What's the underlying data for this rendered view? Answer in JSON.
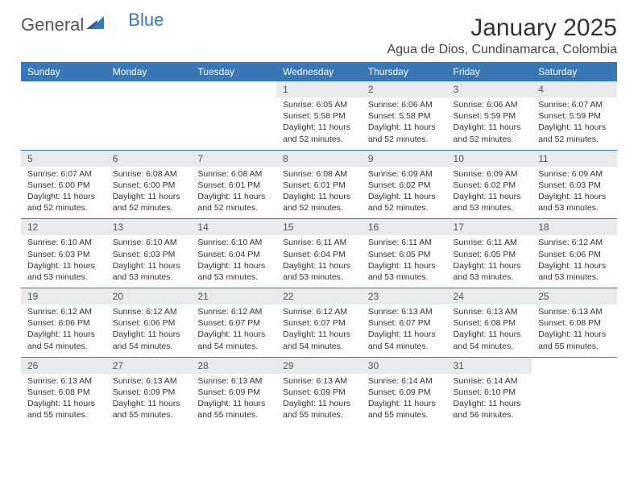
{
  "branding": {
    "text1": "General",
    "text2": "Blue"
  },
  "header": {
    "month_title": "January 2025",
    "location": "Agua de Dios, Cundinamarca, Colombia"
  },
  "colors": {
    "accent": "#3a78b5",
    "header_text": "#ffffff",
    "daynum_bg": "#e9eaeb",
    "body_text": "#333333"
  },
  "day_headers": [
    "Sunday",
    "Monday",
    "Tuesday",
    "Wednesday",
    "Thursday",
    "Friday",
    "Saturday"
  ],
  "weeks": [
    [
      {
        "blank": true
      },
      {
        "blank": true
      },
      {
        "blank": true
      },
      {
        "daynum": "1",
        "sunrise": "Sunrise: 6:05 AM",
        "sunset": "Sunset: 5:58 PM",
        "daylight": "Daylight: 11 hours and 52 minutes."
      },
      {
        "daynum": "2",
        "sunrise": "Sunrise: 6:06 AM",
        "sunset": "Sunset: 5:58 PM",
        "daylight": "Daylight: 11 hours and 52 minutes."
      },
      {
        "daynum": "3",
        "sunrise": "Sunrise: 6:06 AM",
        "sunset": "Sunset: 5:59 PM",
        "daylight": "Daylight: 11 hours and 52 minutes."
      },
      {
        "daynum": "4",
        "sunrise": "Sunrise: 6:07 AM",
        "sunset": "Sunset: 5:59 PM",
        "daylight": "Daylight: 11 hours and 52 minutes."
      }
    ],
    [
      {
        "daynum": "5",
        "sunrise": "Sunrise: 6:07 AM",
        "sunset": "Sunset: 6:00 PM",
        "daylight": "Daylight: 11 hours and 52 minutes."
      },
      {
        "daynum": "6",
        "sunrise": "Sunrise: 6:08 AM",
        "sunset": "Sunset: 6:00 PM",
        "daylight": "Daylight: 11 hours and 52 minutes."
      },
      {
        "daynum": "7",
        "sunrise": "Sunrise: 6:08 AM",
        "sunset": "Sunset: 6:01 PM",
        "daylight": "Daylight: 11 hours and 52 minutes."
      },
      {
        "daynum": "8",
        "sunrise": "Sunrise: 6:08 AM",
        "sunset": "Sunset: 6:01 PM",
        "daylight": "Daylight: 11 hours and 52 minutes."
      },
      {
        "daynum": "9",
        "sunrise": "Sunrise: 6:09 AM",
        "sunset": "Sunset: 6:02 PM",
        "daylight": "Daylight: 11 hours and 52 minutes."
      },
      {
        "daynum": "10",
        "sunrise": "Sunrise: 6:09 AM",
        "sunset": "Sunset: 6:02 PM",
        "daylight": "Daylight: 11 hours and 53 minutes."
      },
      {
        "daynum": "11",
        "sunrise": "Sunrise: 6:09 AM",
        "sunset": "Sunset: 6:03 PM",
        "daylight": "Daylight: 11 hours and 53 minutes."
      }
    ],
    [
      {
        "daynum": "12",
        "sunrise": "Sunrise: 6:10 AM",
        "sunset": "Sunset: 6:03 PM",
        "daylight": "Daylight: 11 hours and 53 minutes."
      },
      {
        "daynum": "13",
        "sunrise": "Sunrise: 6:10 AM",
        "sunset": "Sunset: 6:03 PM",
        "daylight": "Daylight: 11 hours and 53 minutes."
      },
      {
        "daynum": "14",
        "sunrise": "Sunrise: 6:10 AM",
        "sunset": "Sunset: 6:04 PM",
        "daylight": "Daylight: 11 hours and 53 minutes."
      },
      {
        "daynum": "15",
        "sunrise": "Sunrise: 6:11 AM",
        "sunset": "Sunset: 6:04 PM",
        "daylight": "Daylight: 11 hours and 53 minutes."
      },
      {
        "daynum": "16",
        "sunrise": "Sunrise: 6:11 AM",
        "sunset": "Sunset: 6:05 PM",
        "daylight": "Daylight: 11 hours and 53 minutes."
      },
      {
        "daynum": "17",
        "sunrise": "Sunrise: 6:11 AM",
        "sunset": "Sunset: 6:05 PM",
        "daylight": "Daylight: 11 hours and 53 minutes."
      },
      {
        "daynum": "18",
        "sunrise": "Sunrise: 6:12 AM",
        "sunset": "Sunset: 6:06 PM",
        "daylight": "Daylight: 11 hours and 53 minutes."
      }
    ],
    [
      {
        "daynum": "19",
        "sunrise": "Sunrise: 6:12 AM",
        "sunset": "Sunset: 6:06 PM",
        "daylight": "Daylight: 11 hours and 54 minutes."
      },
      {
        "daynum": "20",
        "sunrise": "Sunrise: 6:12 AM",
        "sunset": "Sunset: 6:06 PM",
        "daylight": "Daylight: 11 hours and 54 minutes."
      },
      {
        "daynum": "21",
        "sunrise": "Sunrise: 6:12 AM",
        "sunset": "Sunset: 6:07 PM",
        "daylight": "Daylight: 11 hours and 54 minutes."
      },
      {
        "daynum": "22",
        "sunrise": "Sunrise: 6:12 AM",
        "sunset": "Sunset: 6:07 PM",
        "daylight": "Daylight: 11 hours and 54 minutes."
      },
      {
        "daynum": "23",
        "sunrise": "Sunrise: 6:13 AM",
        "sunset": "Sunset: 6:07 PM",
        "daylight": "Daylight: 11 hours and 54 minutes."
      },
      {
        "daynum": "24",
        "sunrise": "Sunrise: 6:13 AM",
        "sunset": "Sunset: 6:08 PM",
        "daylight": "Daylight: 11 hours and 54 minutes."
      },
      {
        "daynum": "25",
        "sunrise": "Sunrise: 6:13 AM",
        "sunset": "Sunset: 6:08 PM",
        "daylight": "Daylight: 11 hours and 55 minutes."
      }
    ],
    [
      {
        "daynum": "26",
        "sunrise": "Sunrise: 6:13 AM",
        "sunset": "Sunset: 6:08 PM",
        "daylight": "Daylight: 11 hours and 55 minutes."
      },
      {
        "daynum": "27",
        "sunrise": "Sunrise: 6:13 AM",
        "sunset": "Sunset: 6:09 PM",
        "daylight": "Daylight: 11 hours and 55 minutes."
      },
      {
        "daynum": "28",
        "sunrise": "Sunrise: 6:13 AM",
        "sunset": "Sunset: 6:09 PM",
        "daylight": "Daylight: 11 hours and 55 minutes."
      },
      {
        "daynum": "29",
        "sunrise": "Sunrise: 6:13 AM",
        "sunset": "Sunset: 6:09 PM",
        "daylight": "Daylight: 11 hours and 55 minutes."
      },
      {
        "daynum": "30",
        "sunrise": "Sunrise: 6:14 AM",
        "sunset": "Sunset: 6:09 PM",
        "daylight": "Daylight: 11 hours and 55 minutes."
      },
      {
        "daynum": "31",
        "sunrise": "Sunrise: 6:14 AM",
        "sunset": "Sunset: 6:10 PM",
        "daylight": "Daylight: 11 hours and 56 minutes."
      },
      {
        "blank": true
      }
    ]
  ]
}
